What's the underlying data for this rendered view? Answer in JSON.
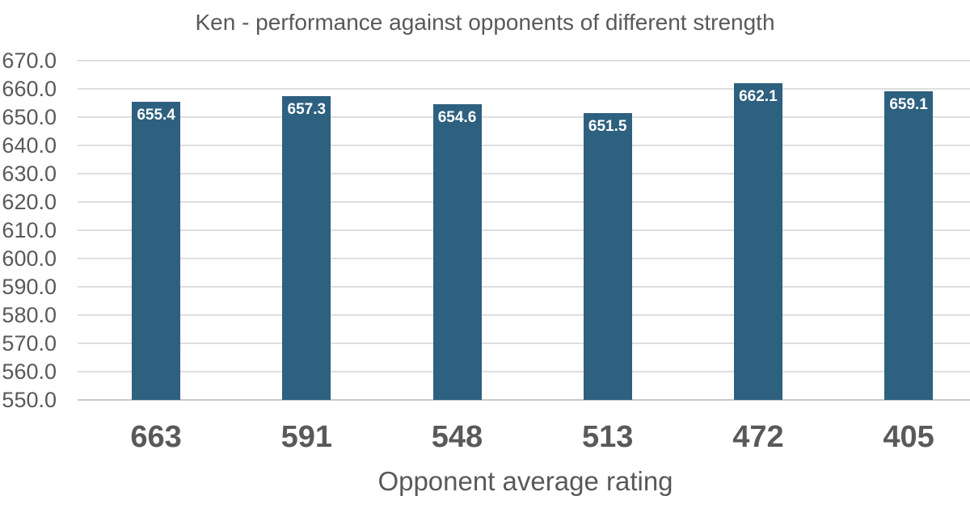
{
  "chart_data": {
    "type": "bar",
    "title": "Ken - performance against opponents of different strength",
    "xlabel": "Opponent average rating",
    "ylabel": "",
    "categories": [
      "663",
      "591",
      "548",
      "513",
      "472",
      "405"
    ],
    "values": [
      655.4,
      657.3,
      654.6,
      651.5,
      662.1,
      659.1
    ],
    "data_labels": [
      "655.4",
      "657.3",
      "654.6",
      "651.5",
      "662.1",
      "659.1"
    ],
    "ylim": [
      550.0,
      670.0
    ],
    "ytick_step": 10,
    "ytick_decimals": 1,
    "grid": "horizontal",
    "legend": "none",
    "colors": {
      "bar": "#2E607F",
      "text": "#595959",
      "gridline": "#DEDEDE",
      "baseline": "#C9C9C9",
      "data_label": "#FFFFFF",
      "background": "#FFFFFF"
    }
  }
}
